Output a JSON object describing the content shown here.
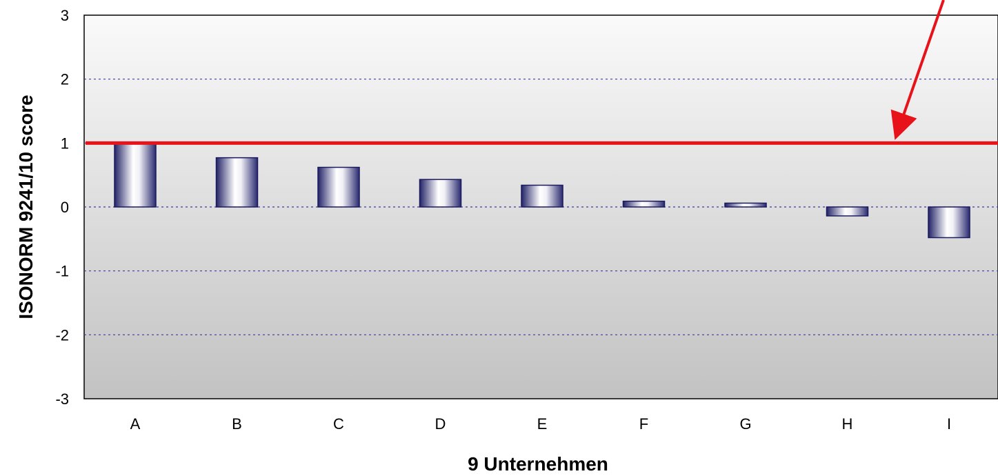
{
  "chart_data": {
    "type": "bar",
    "categories": [
      "A",
      "B",
      "C",
      "D",
      "E",
      "F",
      "G",
      "H",
      "I"
    ],
    "values": [
      1.0,
      0.77,
      0.62,
      0.43,
      0.34,
      0.09,
      0.06,
      -0.14,
      -0.48
    ],
    "xlabel": "9 Unternehmen",
    "ylabel": "ISONORM 9241/10 score",
    "ylim": [
      -3,
      3
    ],
    "yticks": [
      "3",
      "2",
      "1",
      "0",
      "-1",
      "-2",
      "-3"
    ],
    "grid": true,
    "reference_line": {
      "value": 1,
      "color": "#e8131a"
    },
    "colors": {
      "bar_edge": "#1a1a5e",
      "bar_dark": "#232368",
      "bar_light": "#ffffff",
      "grid": "#3a3aa0"
    }
  }
}
